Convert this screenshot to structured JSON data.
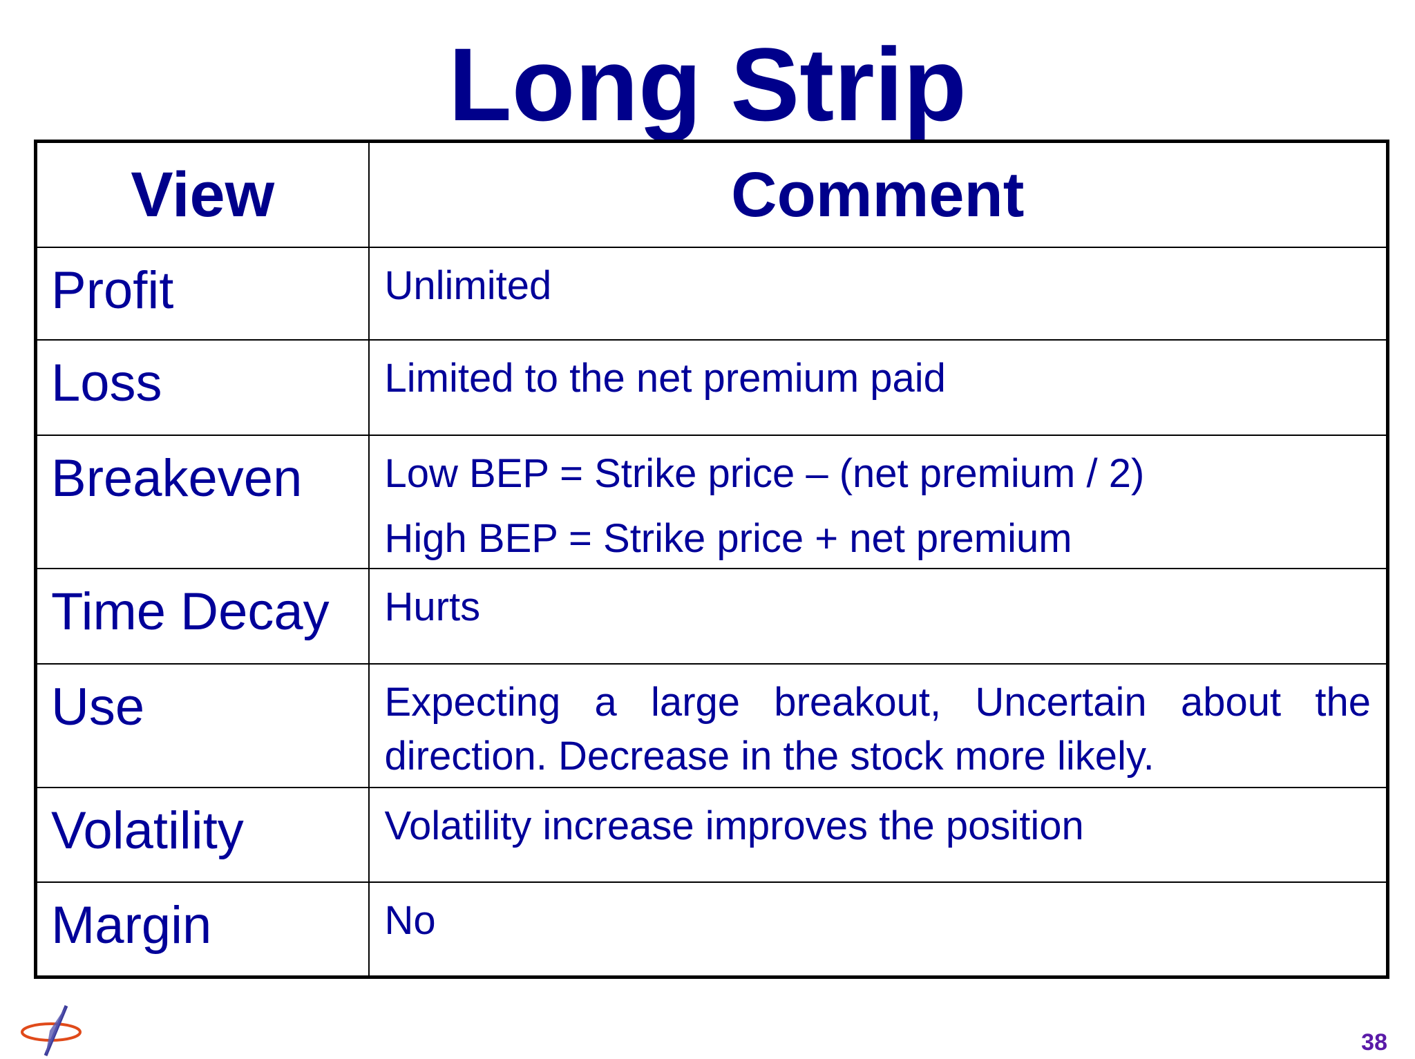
{
  "title": "Long Strip",
  "table": {
    "headers": {
      "view": "View",
      "comment": "Comment"
    },
    "rows": [
      {
        "view": "Profit",
        "comment": [
          "Unlimited"
        ]
      },
      {
        "view": "Loss",
        "comment": [
          "Limited to the net premium paid"
        ]
      },
      {
        "view": "Breakeven",
        "comment": [
          "Low BEP = Strike price – (net premium / 2)",
          "High BEP = Strike price + net premium"
        ]
      },
      {
        "view": "Time Decay",
        "comment": [
          "Hurts"
        ]
      },
      {
        "view": "Use",
        "comment": [
          "Expecting a large breakout, Uncertain about the direction. Decrease in the stock more likely."
        ]
      },
      {
        "view": "Volatility",
        "comment": [
          "Volatility increase improves the position"
        ]
      },
      {
        "view": "Margin",
        "comment": [
          "No"
        ]
      }
    ]
  },
  "logo_icon": "compass-star-logo-icon",
  "page_number": "38",
  "colors": {
    "text": "#000099",
    "title": "#00008B",
    "page_number": "#5a1aa8",
    "border": "#000000"
  }
}
